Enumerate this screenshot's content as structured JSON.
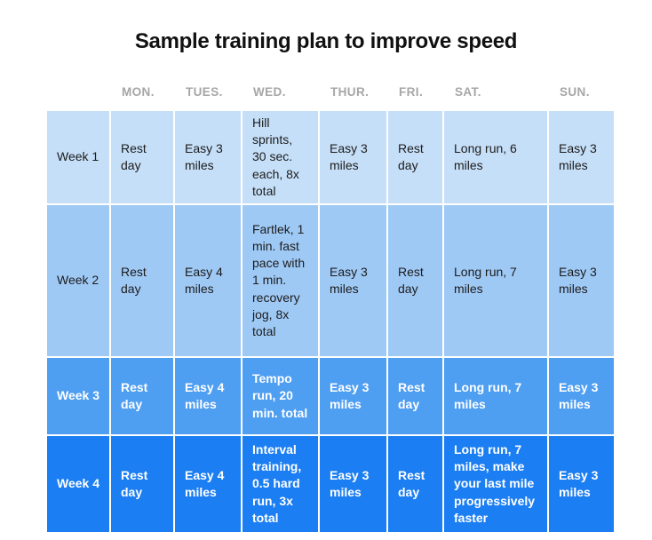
{
  "page": {
    "title": "Sample training plan to improve speed"
  },
  "colors": {
    "week1_row": "#c6dff8",
    "week2_row": "#9fc9f5",
    "week3_row": "#4e9ef2",
    "week4_row": "#1b7ef2",
    "header_text": "#a6a6a6",
    "body_text_dark_rows": "#1c1c1c",
    "body_text_blue_rows": "#ffffff",
    "cell_divider": "#ffffff"
  },
  "chart_data": {
    "type": "table",
    "title": "Sample training plan to improve speed",
    "columns": [
      "",
      "MON.",
      "TUES.",
      "WED.",
      "THUR.",
      "FRI.",
      "SAT.",
      "SUN."
    ],
    "rows": [
      [
        "Week 1",
        "Rest day",
        "Easy 3 miles",
        "Hill sprints, 30 sec. each, 8x total",
        "Easy 3 miles",
        "Rest day",
        "Long run, 6 miles",
        "Easy 3 miles"
      ],
      [
        "Week 2",
        "Rest day",
        "Easy 4 miles",
        "Fartlek, 1 min. fast pace with 1 min. recovery jog, 8x total",
        "Easy 3 miles",
        "Rest day",
        "Long run, 7 miles",
        "Easy 3 miles"
      ],
      [
        "Week 3",
        "Rest day",
        "Easy 4 miles",
        "Tempo run, 20 min. total",
        "Easy 3 miles",
        "Rest day",
        "Long run, 7 miles",
        "Easy 3 miles"
      ],
      [
        "Week 4",
        "Rest day",
        "Easy 4 miles",
        "Interval training, 0.5 hard run, 3x total",
        "Easy 3 miles",
        "Rest day",
        "Long run, 7 miles, make your last mile progressively faster",
        "Easy 3 miles"
      ]
    ],
    "layout": {
      "legend": "none",
      "grid": "white 2px dividers between cells",
      "row_shading": [
        "light-blue",
        "light-blue",
        "medium-blue",
        "dark-blue"
      ]
    }
  }
}
